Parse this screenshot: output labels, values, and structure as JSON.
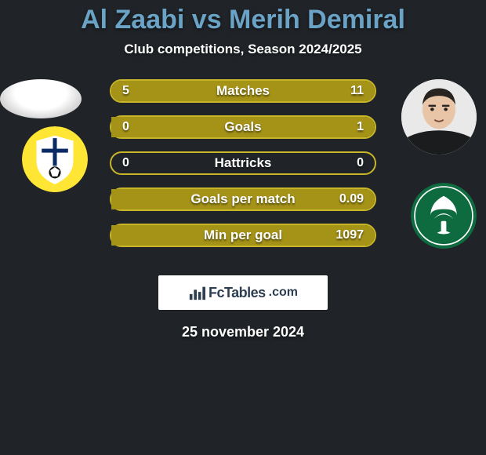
{
  "title_text": "Al Zaabi vs Merih Demiral",
  "title_color": "#6aa3c6",
  "title_fontsize": 34,
  "subtitle_text": "Club competitions, Season 2024/2025",
  "subtitle_fontsize": 17,
  "date_text": "25 november 2024",
  "date_fontsize": 18,
  "accent_color": "#a59318",
  "accent_border": "#c8b628",
  "value_fontsize": 16,
  "label_fontsize": 17,
  "bars": [
    {
      "label": "Matches",
      "left": "5",
      "right": "11",
      "left_pct": 31,
      "right_pct": 69
    },
    {
      "label": "Goals",
      "left": "0",
      "right": "1",
      "left_pct": 0,
      "right_pct": 100
    },
    {
      "label": "Hattricks",
      "left": "0",
      "right": "0",
      "left_pct": 0,
      "right_pct": 0
    },
    {
      "label": "Goals per match",
      "left": "",
      "right": "0.09",
      "left_pct": 0,
      "right_pct": 100
    },
    {
      "label": "Min per goal",
      "left": "",
      "right": "1097",
      "left_pct": 0,
      "right_pct": 100
    }
  ],
  "brand_name": "FcTables",
  "brand_suffix": ".com",
  "brand_fontsize": 18,
  "badge_left": {
    "bg": "#ffe635",
    "shield_fill": "#ffffff",
    "cross_color": "#0a2a66",
    "ball_color": "#111111"
  },
  "badge_right": {
    "bg": "#0e6a3f",
    "emblem_fill": "#ffffff"
  },
  "player_right": {
    "skin": "#e9c5a8",
    "hair": "#2a2420",
    "shirt": "#1a1c1e"
  }
}
